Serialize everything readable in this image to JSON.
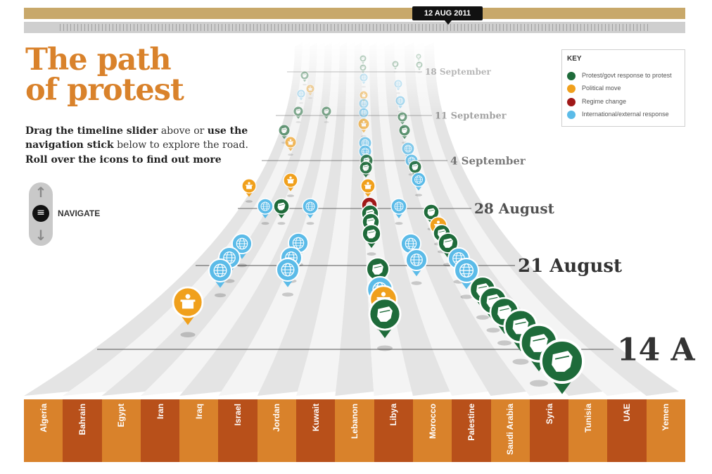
{
  "timeline": {
    "current_date": "12 AUG 2011"
  },
  "title": {
    "line1": "The path",
    "line2": "of protest"
  },
  "intro": {
    "part1": "Drag the timeline slider",
    "part2": " above or ",
    "part3": "use the navigation stick",
    "part4": " below to explore the road. ",
    "part5": "Roll over the icons to find out more"
  },
  "navigation": {
    "label": "NAVIGATE",
    "knob_icon": "menu-icon",
    "up_icon": "arrow-up-icon",
    "down_icon": "arrow-down-icon"
  },
  "key": {
    "title": "KEY",
    "items": [
      {
        "label": "Protest/govt response to protest",
        "color": "#1e6b3a",
        "icon": "fist-icon"
      },
      {
        "label": "Political move",
        "color": "#f0a01c",
        "icon": "podium-icon"
      },
      {
        "label": "Regime change",
        "color": "#a01818",
        "icon": "regime-icon"
      },
      {
        "label": "International/external response",
        "color": "#5bbbe8",
        "icon": "globe-icon"
      }
    ]
  },
  "dates": [
    "18 September",
    "11 September",
    "4 September",
    "28 August",
    "21 August",
    "14 A"
  ],
  "countries": [
    "Algeria",
    "Bahrain",
    "Egypt",
    "Iran",
    "Iraq",
    "Israel",
    "Jordan",
    "Kuwait",
    "Lebanon",
    "Libya",
    "Morocco",
    "Palestine",
    "Saudi Arabia",
    "Syria",
    "Tunisia",
    "UAE",
    "Yemen"
  ],
  "colors": {
    "bar_light": "#d9822b",
    "bar_dark": "#b8501a",
    "title": "#d9822b",
    "timeline_top": "#c8a86a"
  }
}
